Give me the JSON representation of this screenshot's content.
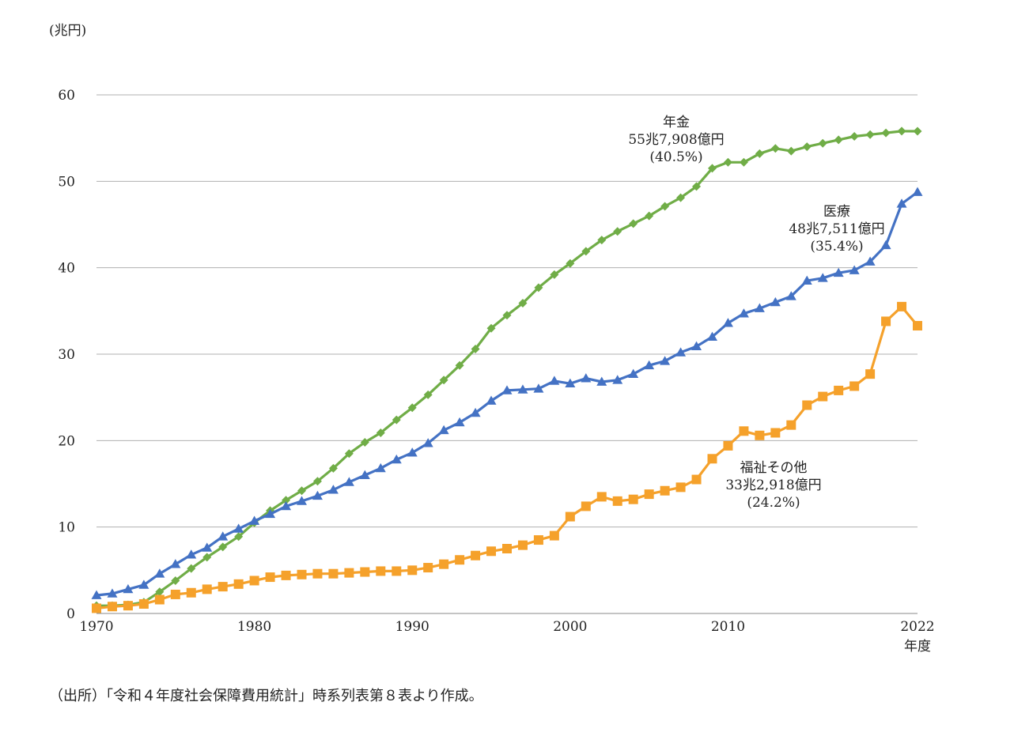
{
  "chart_data": {
    "type": "line",
    "y_unit_label": "(兆円)",
    "x_unit_label": "年度",
    "xlim": [
      1970,
      2022
    ],
    "ylim": [
      0,
      60
    ],
    "x_ticks": [
      "1970",
      "1980",
      "1990",
      "2000",
      "2010",
      "2022"
    ],
    "y_ticks": [
      "0",
      "10",
      "20",
      "30",
      "40",
      "50",
      "60"
    ],
    "grid": "horizontal",
    "x": [
      1970,
      1971,
      1972,
      1973,
      1974,
      1975,
      1976,
      1977,
      1978,
      1979,
      1980,
      1981,
      1982,
      1983,
      1984,
      1985,
      1986,
      1987,
      1988,
      1989,
      1990,
      1991,
      1992,
      1993,
      1994,
      1995,
      1996,
      1997,
      1998,
      1999,
      2000,
      2001,
      2002,
      2003,
      2004,
      2005,
      2006,
      2007,
      2008,
      2009,
      2010,
      2011,
      2012,
      2013,
      2014,
      2015,
      2016,
      2017,
      2018,
      2019,
      2020,
      2021,
      2022
    ],
    "series": [
      {
        "name": "年金",
        "color": "#70ad47",
        "marker": "diamond",
        "values": [
          0.9,
          0.9,
          1.0,
          1.3,
          2.5,
          3.8,
          5.2,
          6.5,
          7.7,
          8.9,
          10.5,
          11.9,
          13.1,
          14.2,
          15.3,
          16.8,
          18.5,
          19.8,
          20.9,
          22.4,
          23.8,
          25.3,
          27.0,
          28.7,
          30.6,
          33.0,
          34.5,
          35.9,
          37.7,
          39.2,
          40.5,
          41.9,
          43.2,
          44.2,
          45.1,
          46.0,
          47.1,
          48.1,
          49.4,
          51.5,
          52.2,
          52.2,
          53.2,
          53.8,
          53.5,
          54.0,
          54.4,
          54.8,
          55.2,
          55.4,
          55.6,
          55.8,
          55.79
        ]
      },
      {
        "name": "医療",
        "color": "#4472c4",
        "marker": "triangle",
        "values": [
          2.1,
          2.3,
          2.8,
          3.3,
          4.6,
          5.7,
          6.8,
          7.6,
          8.9,
          9.8,
          10.7,
          11.5,
          12.4,
          13.0,
          13.6,
          14.3,
          15.2,
          16.0,
          16.8,
          17.8,
          18.6,
          19.7,
          21.2,
          22.1,
          23.2,
          24.6,
          25.8,
          25.9,
          26.0,
          26.9,
          26.6,
          27.2,
          26.8,
          27.0,
          27.7,
          28.7,
          29.2,
          30.2,
          30.9,
          32.0,
          33.6,
          34.7,
          35.3,
          36.0,
          36.7,
          38.5,
          38.8,
          39.4,
          39.7,
          40.7,
          42.6,
          47.4,
          48.75
        ]
      },
      {
        "name": "福祉その他",
        "color": "#f5a12b",
        "marker": "square",
        "values": [
          0.6,
          0.8,
          0.9,
          1.1,
          1.6,
          2.2,
          2.4,
          2.8,
          3.1,
          3.4,
          3.8,
          4.2,
          4.4,
          4.5,
          4.6,
          4.6,
          4.7,
          4.8,
          4.9,
          4.9,
          5.0,
          5.3,
          5.7,
          6.2,
          6.7,
          7.2,
          7.5,
          7.9,
          8.5,
          9.0,
          11.2,
          12.4,
          13.5,
          13.0,
          13.2,
          13.8,
          14.2,
          14.6,
          15.5,
          17.9,
          19.4,
          21.1,
          20.6,
          20.9,
          21.8,
          24.1,
          25.1,
          25.8,
          26.3,
          27.7,
          33.8,
          35.5,
          33.29
        ]
      }
    ],
    "annotations": [
      {
        "series": "年金",
        "lines": [
          "年金",
          "55兆7,908億円",
          "(40.5%)"
        ]
      },
      {
        "series": "医療",
        "lines": [
          "医療",
          "48兆7,511億円",
          "(35.4%)"
        ]
      },
      {
        "series": "福祉その他",
        "lines": [
          "福祉その他",
          "33兆2,918億円",
          "(24.2%)"
        ]
      }
    ]
  },
  "source_note": "（出所）「令和４年度社会保障費用統計」時系列表第８表より作成。"
}
